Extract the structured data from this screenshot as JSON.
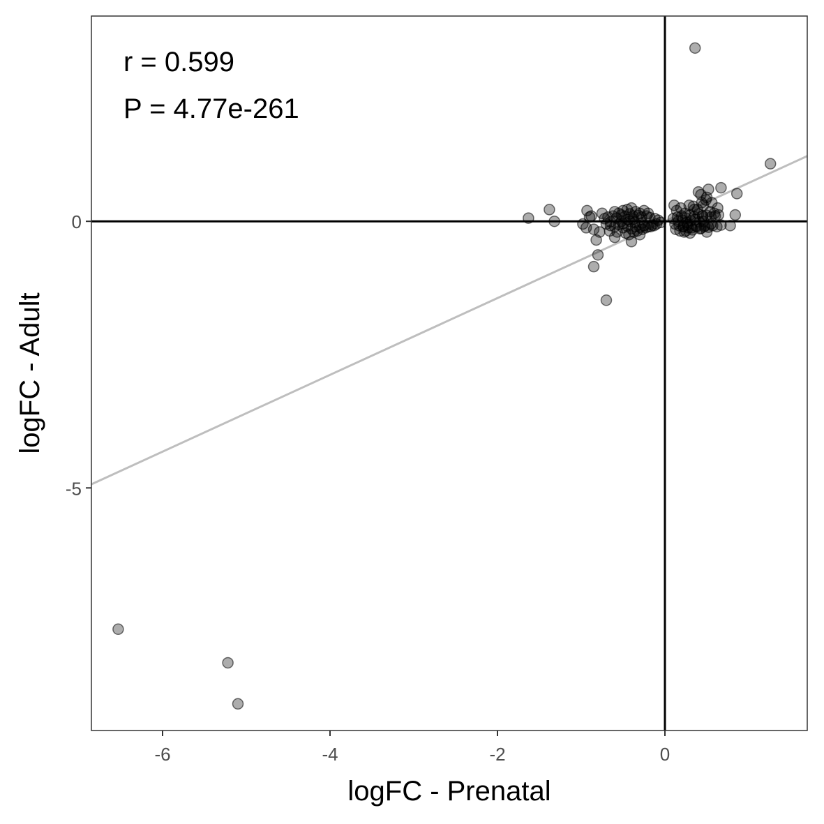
{
  "chart_data": {
    "type": "scatter",
    "title": "",
    "xlabel": "logFC - Prenatal",
    "ylabel": "logFC - Adult",
    "xlim": [
      -6.85,
      1.7
    ],
    "ylim": [
      -9.55,
      3.85
    ],
    "xticks": [
      -6,
      -4,
      -2,
      0
    ],
    "xtick_labels": [
      "-6",
      "-4",
      "-2",
      "0"
    ],
    "yticks": [
      -5,
      0
    ],
    "ytick_labels": [
      "-5",
      "0"
    ],
    "grid": false,
    "reference_lines": {
      "x": 0,
      "y": 0,
      "color": "#000000"
    },
    "regression_line": {
      "slope": 0.72,
      "intercept": 0.0,
      "color": "#bebebe"
    },
    "point_color": "#000000",
    "point_opacity": 0.32,
    "annotations": [
      "r = 0.599",
      "P = 4.77e-261"
    ],
    "points": {
      "x": [
        -6.53,
        -5.22,
        -5.1,
        0.36,
        1.26,
        -1.63,
        -1.38,
        -1.32,
        -0.93,
        -0.98,
        -0.9,
        -0.94,
        -0.82,
        -0.8,
        -0.85,
        -0.7,
        -0.88,
        -0.85,
        -0.75,
        -0.6,
        -0.55,
        -0.5,
        -0.45,
        -0.4,
        -0.35,
        -0.3,
        -0.25,
        -0.2,
        -0.72,
        -0.68,
        -0.62,
        -0.58,
        -0.52,
        -0.48,
        -0.42,
        -0.38,
        -0.32,
        -0.28,
        -0.22,
        -0.18,
        -0.12,
        -0.08,
        -0.7,
        -0.65,
        -0.6,
        -0.55,
        -0.5,
        -0.45,
        -0.4,
        -0.35,
        -0.3,
        -0.25,
        -0.2,
        -0.15,
        -0.1,
        -0.05,
        -0.78,
        -0.66,
        -0.57,
        -0.47,
        -0.43,
        -0.37,
        -0.33,
        -0.27,
        -0.23,
        -0.17,
        -0.13,
        -0.52,
        -0.44,
        -0.36,
        -0.6,
        -0.4,
        -0.3,
        -0.5,
        -0.42,
        -0.38,
        -0.27,
        -0.65,
        0.11,
        0.14,
        0.19,
        0.24,
        0.29,
        0.34,
        0.39,
        0.44,
        0.49,
        0.54,
        0.59,
        0.64,
        0.1,
        0.15,
        0.2,
        0.25,
        0.3,
        0.35,
        0.4,
        0.45,
        0.5,
        0.55,
        0.6,
        0.12,
        0.17,
        0.22,
        0.27,
        0.32,
        0.37,
        0.42,
        0.47,
        0.52,
        0.57,
        0.62,
        0.67,
        0.13,
        0.18,
        0.23,
        0.28,
        0.33,
        0.38,
        0.43,
        0.48,
        0.16,
        0.21,
        0.26,
        0.31,
        0.36,
        0.41,
        0.46,
        0.4,
        0.43,
        0.5,
        0.52,
        0.67,
        0.86,
        0.46,
        0.56,
        0.63,
        0.84,
        0.78,
        0.3,
        0.25,
        0.22,
        0.35,
        0.45,
        0.5,
        0.55
      ],
      "y": [
        -7.65,
        -8.28,
        -9.05,
        3.25,
        1.08,
        0.06,
        0.22,
        0.0,
        0.2,
        -0.05,
        0.08,
        -0.12,
        -0.35,
        -0.63,
        -0.85,
        -1.48,
        0.1,
        -0.15,
        0.15,
        0.18,
        0.15,
        0.2,
        0.22,
        0.25,
        0.18,
        0.15,
        0.2,
        0.15,
        0.05,
        0.08,
        0.1,
        0.06,
        0.12,
        0.09,
        0.14,
        0.1,
        0.11,
        0.08,
        0.1,
        0.07,
        0.05,
        0.02,
        -0.05,
        -0.08,
        -0.1,
        -0.06,
        -0.12,
        -0.09,
        -0.14,
        -0.1,
        -0.11,
        -0.08,
        -0.1,
        -0.07,
        -0.05,
        -0.02,
        -0.2,
        -0.18,
        -0.2,
        -0.22,
        -0.25,
        -0.2,
        -0.18,
        -0.15,
        -0.12,
        -0.1,
        -0.08,
        0.0,
        0.03,
        -0.02,
        -0.3,
        -0.38,
        -0.25,
        -0.04,
        0.0,
        0.04,
        -0.03,
        -0.01,
        0.3,
        0.2,
        0.25,
        0.15,
        0.3,
        0.28,
        0.22,
        0.35,
        0.4,
        0.18,
        0.15,
        0.12,
        0.05,
        0.08,
        0.1,
        0.06,
        0.12,
        0.09,
        0.14,
        0.1,
        0.11,
        0.08,
        0.1,
        -0.05,
        -0.08,
        -0.1,
        -0.06,
        -0.12,
        -0.09,
        -0.14,
        -0.1,
        -0.11,
        -0.08,
        -0.1,
        -0.07,
        -0.15,
        -0.18,
        -0.2,
        -0.12,
        -0.16,
        -0.1,
        -0.13,
        -0.08,
        0.0,
        0.02,
        -0.02,
        0.01,
        0.03,
        -0.01,
        0.0,
        0.55,
        0.5,
        0.45,
        0.6,
        0.63,
        0.52,
        0.3,
        0.35,
        0.25,
        0.12,
        -0.08,
        -0.22,
        -0.18,
        -0.1,
        0.22,
        0.1,
        -0.2,
        -0.05
      ]
    }
  }
}
